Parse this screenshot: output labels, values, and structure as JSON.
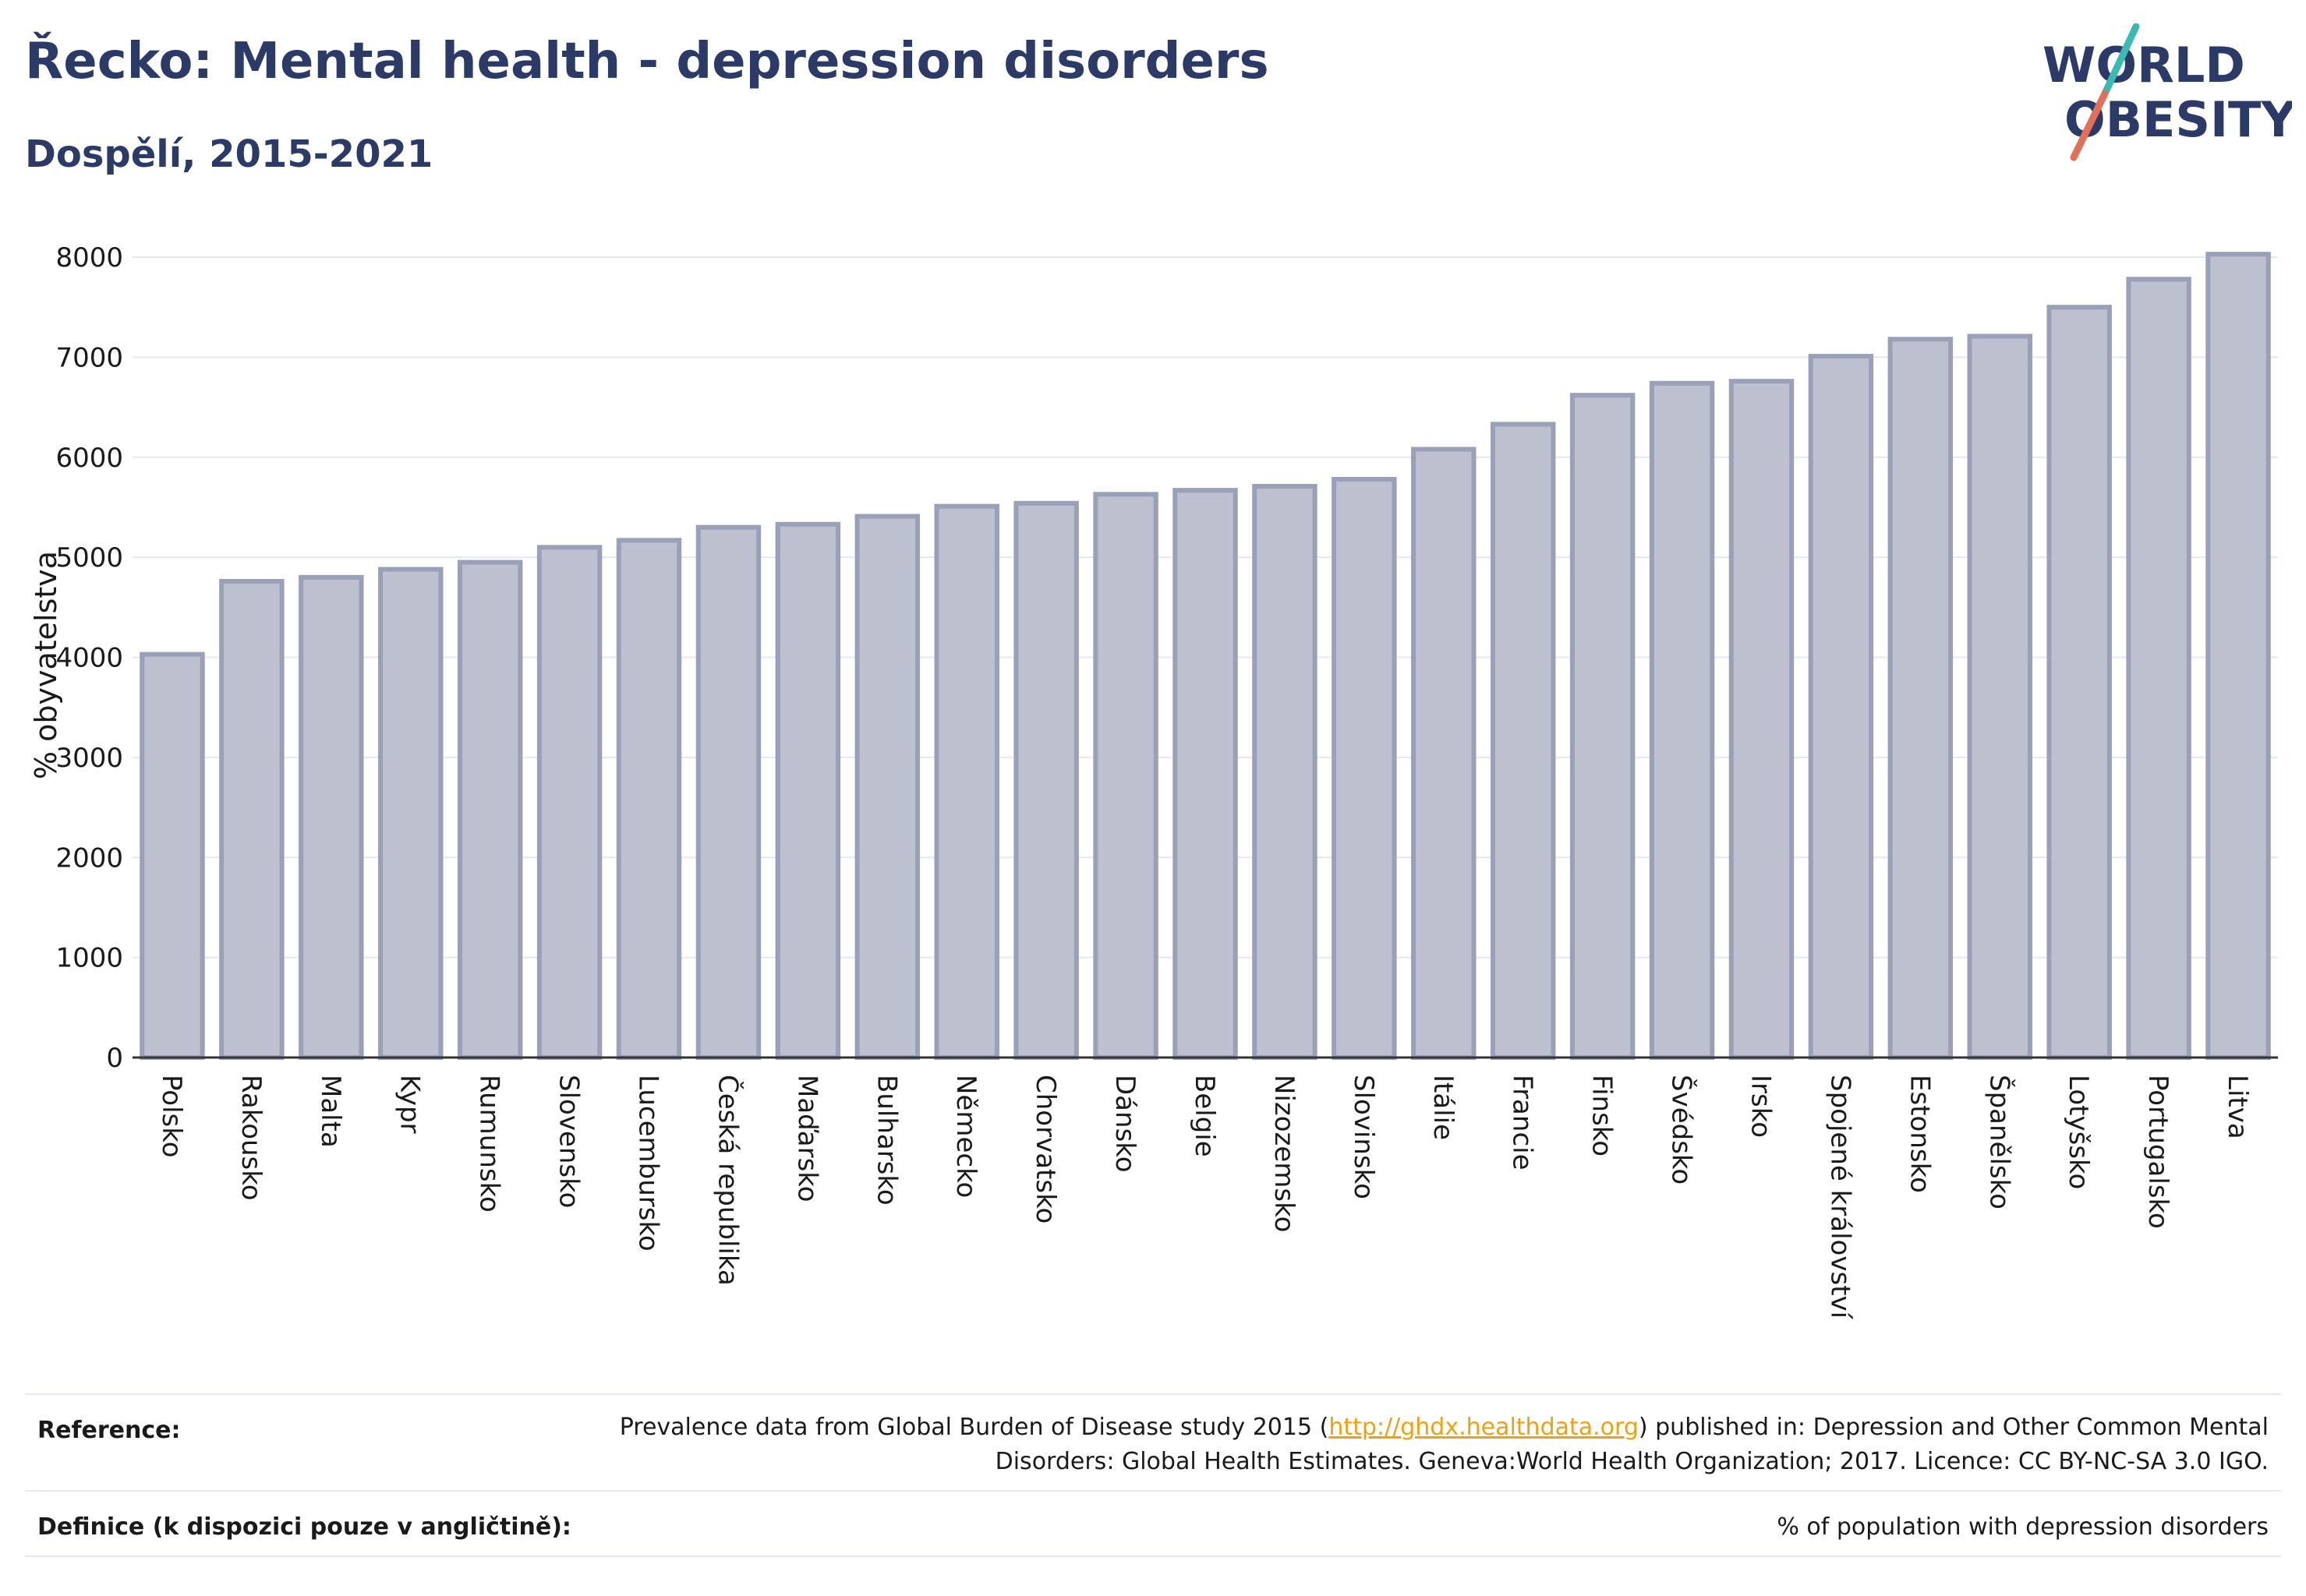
{
  "header": {
    "title": "Řecko: Mental health - depression disorders",
    "subtitle": "Dospělí, 2015-2021"
  },
  "logo": {
    "line1": "WORLD",
    "line2": "OBESITY",
    "text_color": "#2b3a67",
    "slash_teal": "#3bb9b3",
    "slash_red": "#e0705a"
  },
  "colors": {
    "bar_fill": "#bcc0cf",
    "bar_stroke": "#9aa0b8",
    "grid": "#e6e8f0",
    "axis": "#333333"
  },
  "chart_data": {
    "type": "bar",
    "title": "Řecko: Mental health - depression disorders",
    "subtitle": "Dospělí, 2015-2021",
    "ylabel": "% obyvatelstva",
    "xlabel": "",
    "ylim": [
      0,
      8000
    ],
    "yticks": [
      0,
      1000,
      2000,
      3000,
      4000,
      5000,
      6000,
      7000,
      8000
    ],
    "grid": true,
    "categories": [
      "Polsko",
      "Rakousko",
      "Malta",
      "Kypr",
      "Rumunsko",
      "Slovensko",
      "Lucembursko",
      "Česká republika",
      "Maďarsko",
      "Bulharsko",
      "Německo",
      "Chorvatsko",
      "Dánsko",
      "Belgie",
      "Nizozemsko",
      "Slovinsko",
      "Itálie",
      "Francie",
      "Finsko",
      "Švédsko",
      "Irsko",
      "Spojené království",
      "Estonsko",
      "Španělsko",
      "Lotyšsko",
      "Portugalsko",
      "Litva"
    ],
    "values": [
      4030,
      4760,
      4800,
      4880,
      4950,
      5100,
      5170,
      5300,
      5330,
      5410,
      5510,
      5540,
      5630,
      5670,
      5710,
      5780,
      6080,
      6330,
      6620,
      6740,
      6760,
      7010,
      7180,
      7210,
      7500,
      7780,
      8030
    ]
  },
  "reference": {
    "label": "Reference:",
    "text_before": "Prevalence data from Global Burden of Disease study 2015 (",
    "link": "http://ghdx.healthdata.org",
    "text_after": ") published in: Depression and Other Common Mental Disorders: Global Health Estimates. Geneva:World Health Organization; 2017. Licence: CC BY-NC-SA 3.0 IGO."
  },
  "definition": {
    "label": "Definice (k dispozici pouze v angličtině):",
    "text": "% of population with depression disorders"
  }
}
